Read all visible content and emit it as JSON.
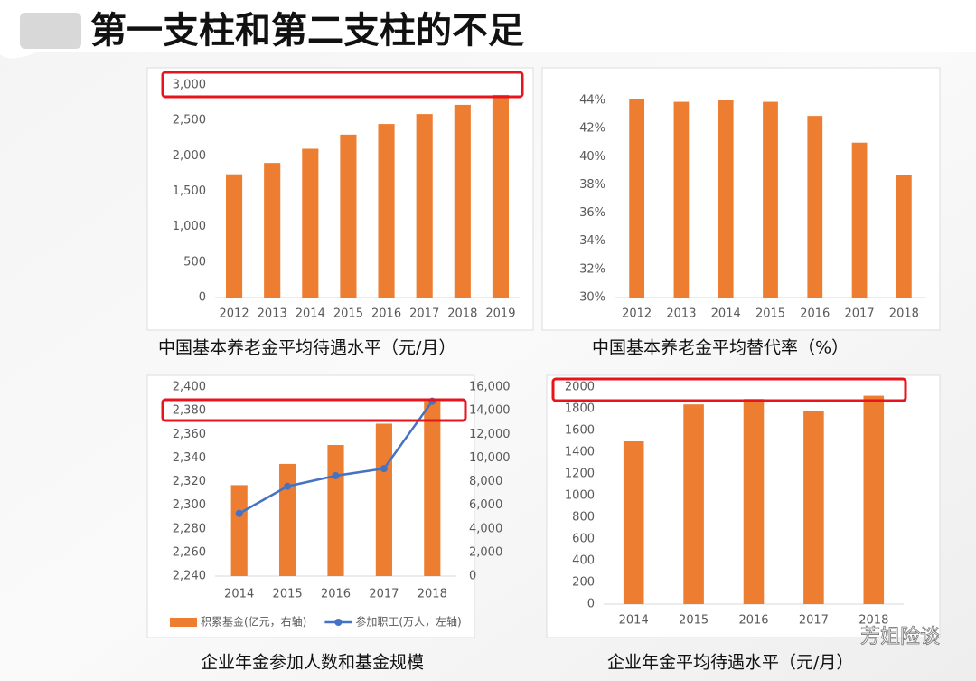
{
  "title": "第一支柱和第二支柱的不足",
  "watermark": "芳姐险谈",
  "chart_data": [
    {
      "type": "bar",
      "title": "中国基本养老金平均待遇水平（元/月）",
      "color": "#ed7d31",
      "grid": false,
      "categories": [
        "2012",
        "2013",
        "2014",
        "2015",
        "2016",
        "2017",
        "2018",
        "2019"
      ],
      "values": [
        1740,
        1900,
        2100,
        2300,
        2450,
        2590,
        2720,
        2860
      ],
      "ylim": [
        0,
        3000
      ],
      "yticks": [
        0,
        500,
        {
          "value": 1000,
          "label": "1,000"
        },
        {
          "value": 1500,
          "label": "1,500"
        },
        {
          "value": 2000,
          "label": "2,000"
        },
        {
          "value": 2500,
          "label": "2,500"
        },
        {
          "value": 3000,
          "label": "3,000"
        }
      ]
    },
    {
      "type": "bar",
      "title": "中国基本养老金平均替代率（%）",
      "color": "#ed7d31",
      "grid": false,
      "categories": [
        "2012",
        "2013",
        "2014",
        "2015",
        "2016",
        "2017",
        "2018"
      ],
      "values": [
        44.1,
        43.9,
        44.0,
        43.9,
        42.9,
        41.0,
        38.7
      ],
      "ylim": [
        30,
        44
      ],
      "yticks": [
        {
          "value": 30,
          "label": "30%"
        },
        {
          "value": 32,
          "label": "32%"
        },
        {
          "value": 34,
          "label": "34%"
        },
        {
          "value": 36,
          "label": "36%"
        },
        {
          "value": 38,
          "label": "38%"
        },
        {
          "value": 40,
          "label": "40%"
        },
        {
          "value": 42,
          "label": "42%"
        },
        {
          "value": 44,
          "label": "44%"
        }
      ]
    },
    {
      "type": "combo",
      "title": "企业年金参加人数和基金规模",
      "grid": false,
      "categories": [
        "2014",
        "2015",
        "2016",
        "2017",
        "2018"
      ],
      "series": [
        {
          "name": "积累基金(亿元，右轴)",
          "type": "bar",
          "axis": "y2",
          "color": "#ed7d31",
          "values": [
            7700,
            9500,
            11100,
            12900,
            14800
          ]
        },
        {
          "name": "参加职工(万人，左轴)",
          "type": "line",
          "axis": "y",
          "color": "#4472c4",
          "values": [
            2293,
            2316,
            2325,
            2331,
            2388
          ]
        }
      ],
      "ylim": [
        2240,
        2400
      ],
      "yticks": [
        {
          "value": 2240,
          "label": "2,240"
        },
        {
          "value": 2260,
          "label": "2,260"
        },
        {
          "value": 2280,
          "label": "2,280"
        },
        {
          "value": 2300,
          "label": "2,300"
        },
        {
          "value": 2320,
          "label": "2,320"
        },
        {
          "value": 2340,
          "label": "2,340"
        },
        {
          "value": 2360,
          "label": "2,360"
        },
        {
          "value": 2380,
          "label": "2,380"
        },
        {
          "value": 2400,
          "label": "2,400"
        }
      ],
      "y2lim": [
        0,
        16000
      ],
      "y2ticks": [
        0,
        {
          "value": 2000,
          "label": "2,000"
        },
        {
          "value": 4000,
          "label": "4,000"
        },
        {
          "value": 6000,
          "label": "6,000"
        },
        {
          "value": 8000,
          "label": "8,000"
        },
        {
          "value": 10000,
          "label": "10,000"
        },
        {
          "value": 12000,
          "label": "12,000"
        },
        {
          "value": 14000,
          "label": "14,000"
        },
        {
          "value": 16000,
          "label": "16,000"
        }
      ]
    },
    {
      "type": "bar",
      "title": "企业年金平均待遇水平（元/月）",
      "color": "#ed7d31",
      "grid": false,
      "categories": [
        "2014",
        "2015",
        "2016",
        "2017",
        "2018"
      ],
      "values": [
        1500,
        1840,
        1890,
        1780,
        1920
      ],
      "ylim": [
        0,
        2000
      ],
      "yticks": [
        0,
        200,
        400,
        600,
        800,
        1000,
        1200,
        1400,
        1600,
        1800,
        2000
      ]
    }
  ]
}
